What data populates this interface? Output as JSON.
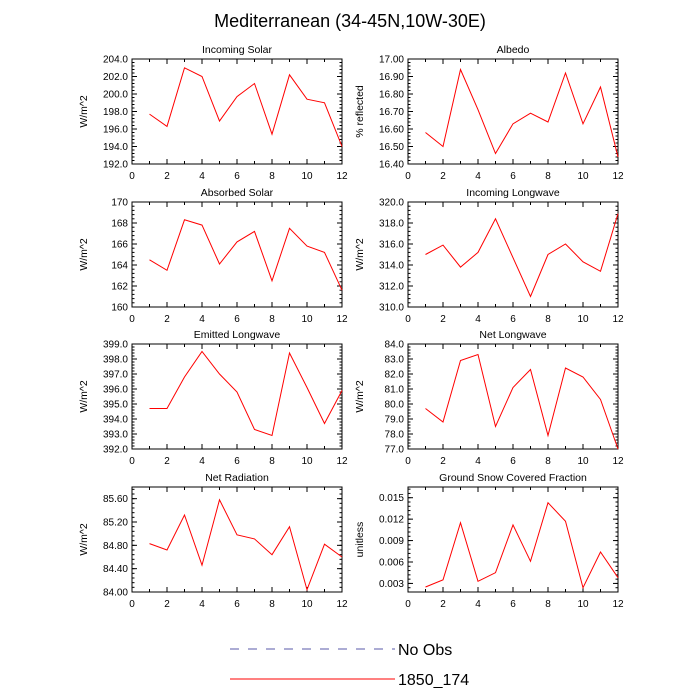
{
  "title": "Mediterranean (34-45N,10W-30E)",
  "colors": {
    "series": "#ff0000",
    "obs": "#5a5aa8",
    "axis": "#000000"
  },
  "legend": [
    {
      "label": "No Obs",
      "style": "dashed",
      "color": "#5a5aa8"
    },
    {
      "label": "1850_174",
      "style": "solid",
      "color": "#ff0000"
    }
  ],
  "chart_data": [
    {
      "type": "line",
      "title": "Incoming Solar",
      "ylabel": "W/m^2",
      "x": [
        1,
        2,
        3,
        4,
        5,
        6,
        7,
        8,
        9,
        10,
        11,
        12
      ],
      "series": [
        {
          "name": "1850_174",
          "values": [
            197.7,
            196.3,
            203.0,
            202.0,
            196.9,
            199.7,
            201.2,
            195.4,
            202.2,
            199.4,
            199.0,
            194.0
          ]
        }
      ],
      "xlim": [
        0,
        12
      ],
      "ylim": [
        192,
        204
      ],
      "xticks": [
        0,
        2,
        4,
        6,
        8,
        10,
        12
      ],
      "yticks": [
        "192.0",
        "194.0",
        "196.0",
        "198.0",
        "200.0",
        "202.0",
        "204.0"
      ]
    },
    {
      "type": "line",
      "title": "Albedo",
      "ylabel": "% reflected",
      "x": [
        1,
        2,
        3,
        4,
        5,
        6,
        7,
        8,
        9,
        10,
        11,
        12
      ],
      "series": [
        {
          "name": "1850_174",
          "values": [
            16.58,
            16.5,
            16.94,
            16.71,
            16.46,
            16.63,
            16.69,
            16.64,
            16.92,
            16.63,
            16.84,
            16.44
          ]
        }
      ],
      "xlim": [
        0,
        12
      ],
      "ylim": [
        16.4,
        17.0
      ],
      "xticks": [
        0,
        2,
        4,
        6,
        8,
        10,
        12
      ],
      "yticks": [
        "16.40",
        "16.50",
        "16.60",
        "16.70",
        "16.80",
        "16.90",
        "17.00"
      ]
    },
    {
      "type": "line",
      "title": "Absorbed Solar",
      "ylabel": "W/m^2",
      "x": [
        1,
        2,
        3,
        4,
        5,
        6,
        7,
        8,
        9,
        10,
        11,
        12
      ],
      "series": [
        {
          "name": "1850_174",
          "values": [
            164.5,
            163.5,
            168.3,
            167.8,
            164.1,
            166.2,
            167.2,
            162.5,
            167.5,
            165.8,
            165.2,
            161.6
          ]
        }
      ],
      "xlim": [
        0,
        12
      ],
      "ylim": [
        160,
        170
      ],
      "xticks": [
        0,
        2,
        4,
        6,
        8,
        10,
        12
      ],
      "yticks": [
        "160",
        "162",
        "164",
        "166",
        "168",
        "170"
      ]
    },
    {
      "type": "line",
      "title": "Incoming Longwave",
      "ylabel": "W/m^2",
      "x": [
        1,
        2,
        3,
        4,
        5,
        6,
        7,
        8,
        9,
        10,
        11,
        12
      ],
      "series": [
        {
          "name": "1850_174",
          "values": [
            315.0,
            315.9,
            313.8,
            315.2,
            318.4,
            314.7,
            311.0,
            315.0,
            316.0,
            314.3,
            313.4,
            318.9
          ]
        }
      ],
      "xlim": [
        0,
        12
      ],
      "ylim": [
        310,
        320
      ],
      "xticks": [
        0,
        2,
        4,
        6,
        8,
        10,
        12
      ],
      "yticks": [
        "310.0",
        "312.0",
        "314.0",
        "316.0",
        "318.0",
        "320.0"
      ]
    },
    {
      "type": "line",
      "title": "Emitted Longwave",
      "ylabel": "W/m^2",
      "x": [
        1,
        2,
        3,
        4,
        5,
        6,
        7,
        8,
        9,
        10,
        11,
        12
      ],
      "series": [
        {
          "name": "1850_174",
          "values": [
            394.7,
            394.7,
            396.8,
            398.5,
            397.0,
            395.8,
            393.3,
            392.9,
            398.4,
            396.1,
            393.7,
            395.9
          ]
        }
      ],
      "xlim": [
        0,
        12
      ],
      "ylim": [
        392,
        399
      ],
      "xticks": [
        0,
        2,
        4,
        6,
        8,
        10,
        12
      ],
      "yticks": [
        "392.0",
        "393.0",
        "394.0",
        "395.0",
        "396.0",
        "397.0",
        "398.0",
        "399.0"
      ]
    },
    {
      "type": "line",
      "title": "Net Longwave",
      "ylabel": "W/m^2",
      "x": [
        1,
        2,
        3,
        4,
        5,
        6,
        7,
        8,
        9,
        10,
        11,
        12
      ],
      "series": [
        {
          "name": "1850_174",
          "values": [
            79.7,
            78.8,
            82.9,
            83.3,
            78.5,
            81.1,
            82.3,
            77.9,
            82.4,
            81.8,
            80.3,
            77.0
          ]
        }
      ],
      "xlim": [
        0,
        12
      ],
      "ylim": [
        77,
        84
      ],
      "xticks": [
        0,
        2,
        4,
        6,
        8,
        10,
        12
      ],
      "yticks": [
        "77.0",
        "78.0",
        "79.0",
        "80.0",
        "81.0",
        "82.0",
        "83.0",
        "84.0"
      ]
    },
    {
      "type": "line",
      "title": "Net Radiation",
      "ylabel": "W/m^2",
      "x": [
        1,
        2,
        3,
        4,
        5,
        6,
        7,
        8,
        9,
        10,
        11,
        12
      ],
      "series": [
        {
          "name": "1850_174",
          "values": [
            84.83,
            84.72,
            85.32,
            84.46,
            85.58,
            84.98,
            84.91,
            84.64,
            85.12,
            84.04,
            84.82,
            84.6
          ]
        }
      ],
      "xlim": [
        0,
        12
      ],
      "ylim": [
        84.0,
        85.8
      ],
      "xticks": [
        0,
        2,
        4,
        6,
        8,
        10,
        12
      ],
      "yticks": [
        "84.00",
        "84.40",
        "84.80",
        "85.20",
        "85.60"
      ]
    },
    {
      "type": "line",
      "title": "Ground Snow Covered Fraction",
      "ylabel": "unitless",
      "x": [
        1,
        2,
        3,
        4,
        5,
        6,
        7,
        8,
        9,
        10,
        11,
        12
      ],
      "series": [
        {
          "name": "1850_174",
          "values": [
            0.0025,
            0.0035,
            0.0115,
            0.0033,
            0.0045,
            0.0112,
            0.0061,
            0.0143,
            0.0117,
            0.0024,
            0.0074,
            0.0038
          ]
        }
      ],
      "xlim": [
        0,
        12
      ],
      "ylim": [
        0.0018,
        0.0165
      ],
      "xticks": [
        0,
        2,
        4,
        6,
        8,
        10,
        12
      ],
      "yticks": [
        "0.003",
        "0.006",
        "0.009",
        "0.012",
        "0.015"
      ]
    }
  ]
}
